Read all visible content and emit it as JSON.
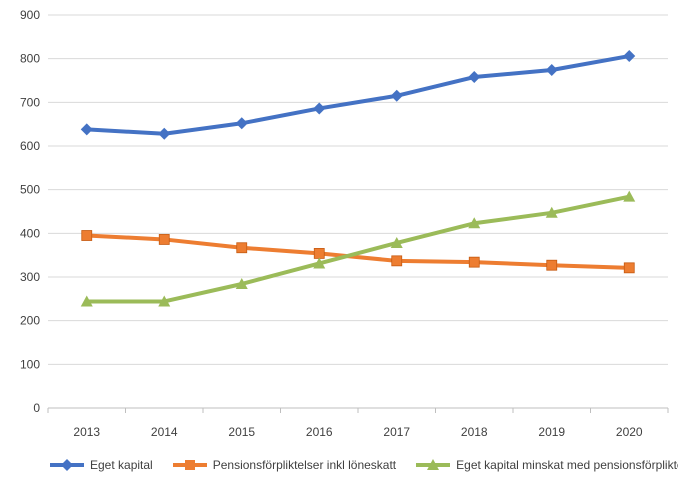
{
  "chart_data": {
    "type": "line",
    "categories": [
      "2013",
      "2014",
      "2015",
      "2016",
      "2017",
      "2018",
      "2019",
      "2020"
    ],
    "ylim": [
      0,
      900
    ],
    "yticks": [
      0,
      100,
      200,
      300,
      400,
      500,
      600,
      700,
      800,
      900
    ],
    "grid": "horizontal",
    "legend_position": "bottom",
    "series": [
      {
        "name": "Eget kapital",
        "color": "#4472C4",
        "marker": "diamond",
        "values": [
          638,
          628,
          652,
          686,
          715,
          758,
          774,
          806
        ]
      },
      {
        "name": "Pensionsförpliktelser inkl löneskatt",
        "color": "#ED7D31",
        "marker": "square",
        "values": [
          395,
          386,
          367,
          354,
          337,
          334,
          327,
          321
        ]
      },
      {
        "name": "Eget kapital minskat med pensionsförpliktelser",
        "color": "#9BBB59",
        "marker": "triangle",
        "values": [
          244,
          244,
          284,
          331,
          378,
          423,
          447,
          484
        ]
      }
    ]
  }
}
